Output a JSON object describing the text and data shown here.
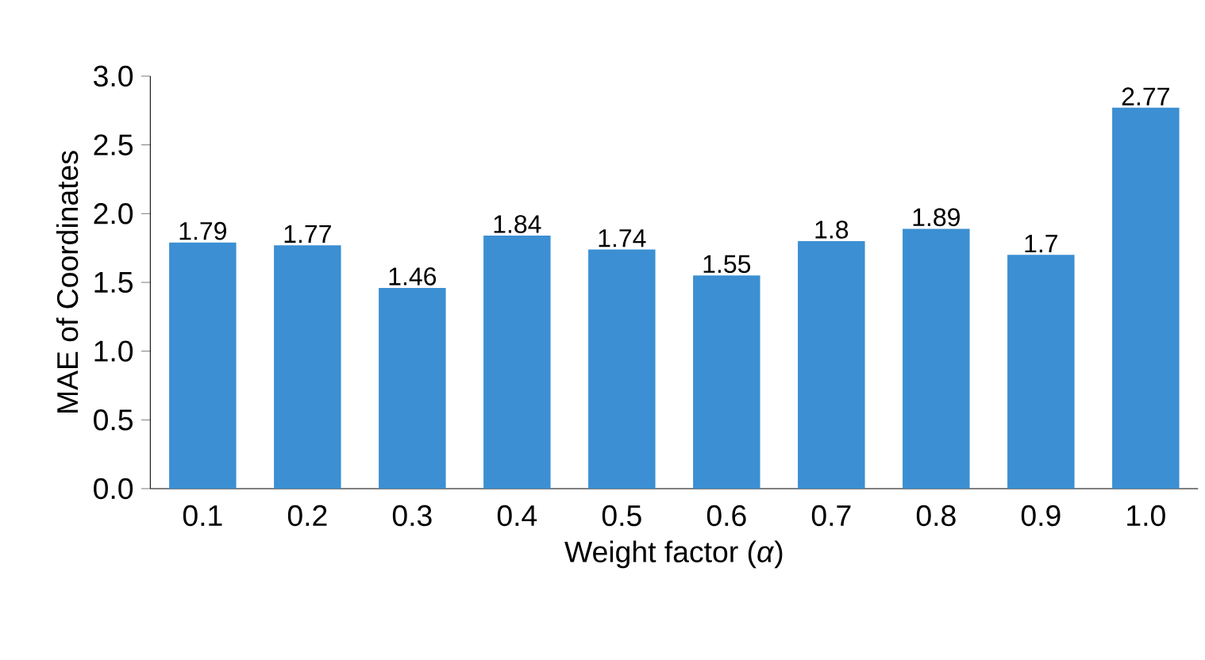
{
  "chart_data": {
    "type": "bar",
    "xlabel": "Weight factor (*α*)",
    "ylabel": "MAE of Coordinates",
    "categories": [
      "0.1",
      "0.2",
      "0.3",
      "0.4",
      "0.5",
      "0.6",
      "0.7",
      "0.8",
      "0.9",
      "1.0"
    ],
    "values": [
      1.79,
      1.77,
      1.46,
      1.84,
      1.74,
      1.55,
      1.8,
      1.89,
      1.7,
      2.77
    ],
    "color": "#3b8fd2",
    "data_labels": true,
    "ylim": [
      0,
      3
    ],
    "yticks": [
      {
        "value": 0,
        "label": "0.0"
      },
      {
        "value": 0.5,
        "label": "0.5"
      },
      {
        "value": 1,
        "label": "1.0"
      },
      {
        "value": 1.5,
        "label": "1.5"
      },
      {
        "value": 2,
        "label": "2.0"
      },
      {
        "value": 2.5,
        "label": "2.5"
      },
      {
        "value": 3,
        "label": "3.0"
      }
    ]
  }
}
